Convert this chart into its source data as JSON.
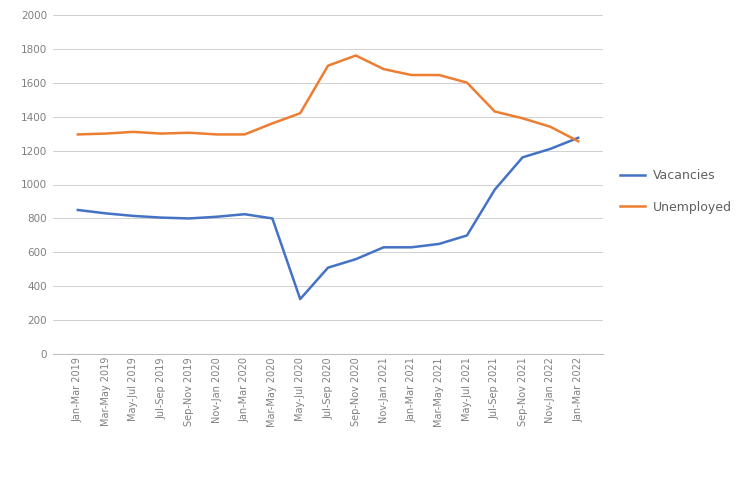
{
  "labels": [
    "Jan-Mar 2019",
    "Mar-May 2019",
    "May-Jul 2019",
    "Jul-Sep 2019",
    "Sep-Nov 2019",
    "Nov-Jan 2020",
    "Jan-Mar 2020",
    "Mar-May 2020",
    "May-Jul 2020",
    "Jul-Sep 2020",
    "Sep-Nov 2020",
    "Nov-Jan 2021",
    "Jan-Mar 2021",
    "Mar-May 2021",
    "May-Jul 2021",
    "Jul-Sep 2021",
    "Sep-Nov 2021",
    "Nov-Jan 2022",
    "Jan-Mar 2022"
  ],
  "vacancies": [
    850,
    830,
    815,
    805,
    800,
    810,
    825,
    800,
    325,
    510,
    560,
    630,
    630,
    650,
    700,
    970,
    1160,
    1210,
    1275
  ],
  "unemployed": [
    1295,
    1300,
    1310,
    1300,
    1305,
    1295,
    1295,
    1360,
    1420,
    1700,
    1760,
    1680,
    1645,
    1645,
    1600,
    1430,
    1390,
    1340,
    1255
  ],
  "vacancies_color": "#4472C4",
  "unemployed_color": "#ED7D31",
  "ylim": [
    0,
    2000
  ],
  "yticks": [
    0,
    200,
    400,
    600,
    800,
    1000,
    1200,
    1400,
    1600,
    1800,
    2000
  ],
  "background_color": "#FFFFFF",
  "grid_color": "#D0D0D0",
  "legend_labels": [
    "Vacancies",
    "Unemployed"
  ],
  "line_width": 1.8
}
